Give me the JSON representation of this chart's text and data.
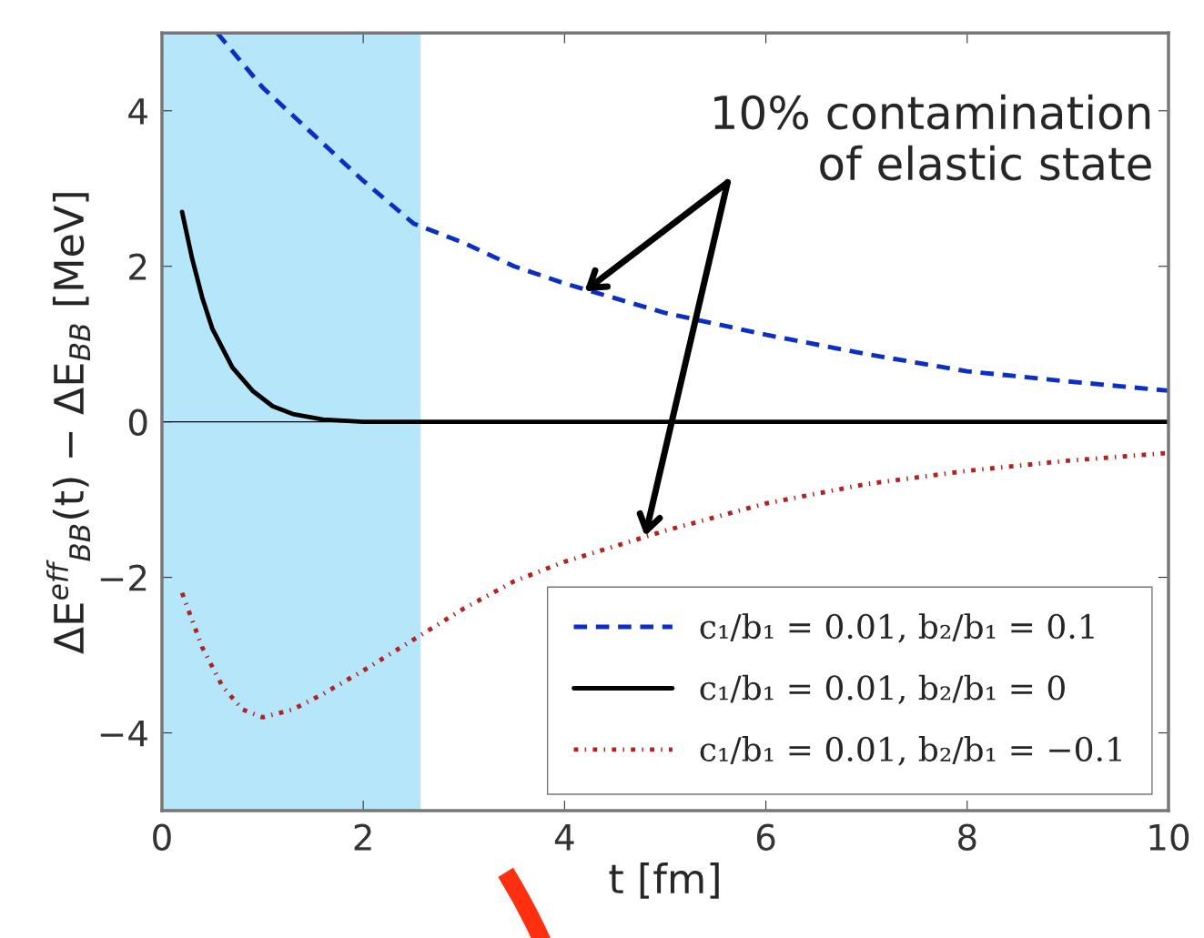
{
  "chart_data": {
    "type": "line",
    "xlabel": "t [fm]",
    "ylabel": "ΔE$^{eff}$$_{BB}$(t) − ΔE$_{BB}$ [MeV]",
    "xlim": [
      0,
      10
    ],
    "ylim": [
      -5,
      5
    ],
    "xticks": [
      0,
      2,
      4,
      6,
      8,
      10
    ],
    "yticks": [
      {
        "value": -4,
        "label": "−4"
      },
      {
        "value": -2,
        "label": "−2"
      },
      0,
      2,
      4
    ],
    "series": [
      {
        "name": "c₁/b₁ = 0.01, b₂/b₁ = 0.1",
        "color": "#0b2fc4",
        "line_style": "dashed",
        "x": [
          0.55,
          1,
          1.5,
          2,
          2.5,
          3,
          3.5,
          4,
          5,
          6,
          7,
          8,
          9,
          10
        ],
        "values": [
          5,
          4.3,
          3.7,
          3.1,
          2.55,
          2.3,
          2.0,
          1.78,
          1.4,
          1.12,
          0.87,
          0.65,
          0.52,
          0.4
        ]
      },
      {
        "name": "c₁/b₁ = 0.01, b₂/b₁ = 0",
        "color": "#000000",
        "line_style": "solid",
        "x": [
          0.2,
          0.3,
          0.4,
          0.5,
          0.7,
          0.9,
          1.1,
          1.3,
          1.6,
          2,
          10
        ],
        "values": [
          2.7,
          2.1,
          1.6,
          1.2,
          0.7,
          0.4,
          0.2,
          0.1,
          0.03,
          0,
          0
        ]
      },
      {
        "name": "c₁/b₁ = 0.01, b₂/b₁ = −0.1",
        "color": "#b22222",
        "line_style": "dotted",
        "x": [
          0.2,
          0.4,
          0.6,
          0.8,
          1.0,
          1.3,
          1.6,
          2,
          2.5,
          3,
          3.5,
          4,
          5,
          6,
          7,
          8,
          9,
          10
        ],
        "values": [
          -2.2,
          -2.9,
          -3.4,
          -3.7,
          -3.8,
          -3.7,
          -3.5,
          -3.2,
          -2.8,
          -2.4,
          -2.05,
          -1.8,
          -1.4,
          -1.05,
          -0.8,
          -0.63,
          -0.5,
          -0.4
        ]
      }
    ],
    "bands": [
      {
        "axis": "x",
        "from": 0,
        "to": 2.57,
        "color": "#8fd8f8"
      }
    ],
    "ref_lines": [
      {
        "axis": "y",
        "value": 0,
        "color": "#000000"
      }
    ],
    "annotations": [
      "10% contamination\n      of elastic state"
    ],
    "legend": "bottom right",
    "grid": false
  }
}
